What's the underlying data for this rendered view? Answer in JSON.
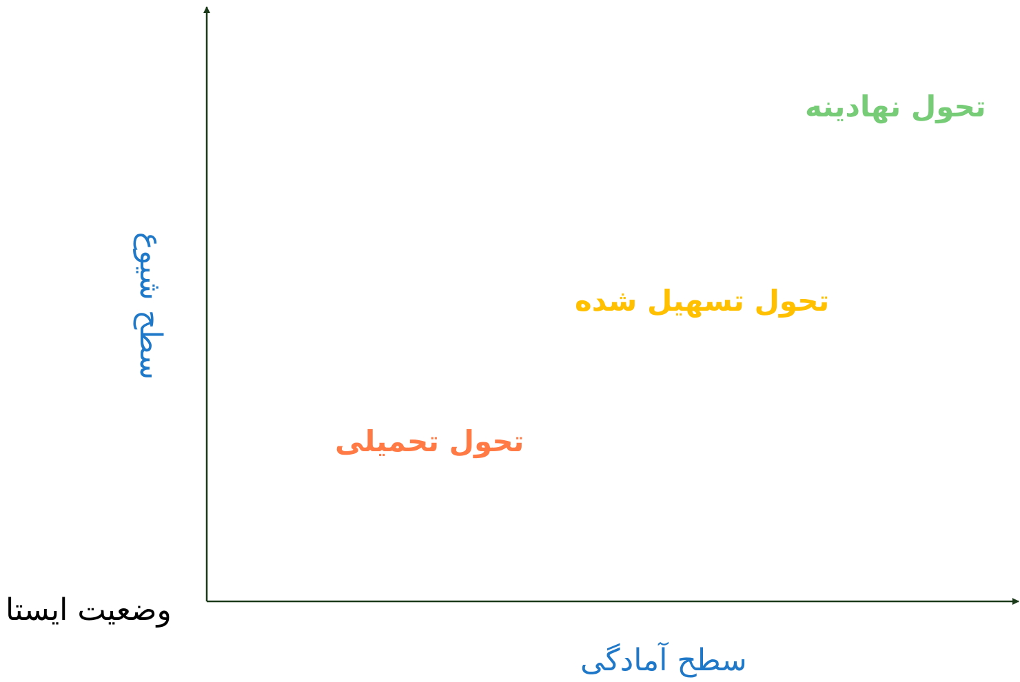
{
  "diagram": {
    "origin_label": "وضعیت ایستا",
    "x_axis_label": "سطح آمادگی",
    "y_axis_label": "سطح شیوع",
    "states": [
      {
        "id": "institutionalized",
        "label": "تحول نهادینه",
        "color": "#77cc77"
      },
      {
        "id": "facilitated",
        "label": "تحول تسهیل شده",
        "color": "#ffc000"
      },
      {
        "id": "imposed",
        "label": "تحول تحمیلی",
        "color": "#ff7a45"
      }
    ],
    "axis_color": "#1a3a1a",
    "axis_label_color": "#1f78c8"
  }
}
